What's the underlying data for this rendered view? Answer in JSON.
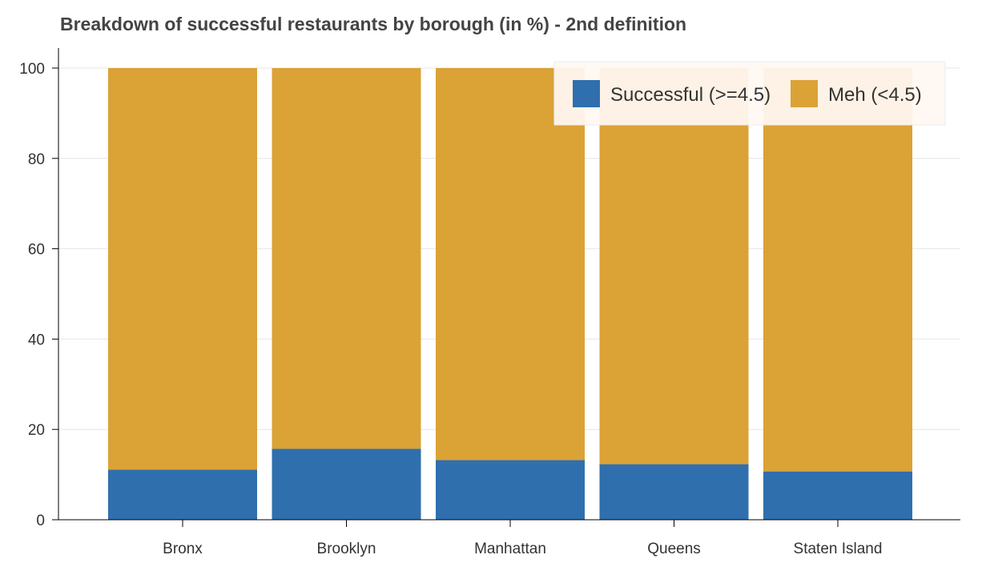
{
  "chart_data": {
    "type": "bar",
    "stacked": true,
    "title": "Breakdown of successful restaurants by borough (in %) - 2nd definition",
    "xlabel": "",
    "ylabel": "",
    "categories": [
      "Bronx",
      "Brooklyn",
      "Manhattan",
      "Queens",
      "Staten Island"
    ],
    "series": [
      {
        "name": "Successful (>=4.5)",
        "color": "#2f6fad",
        "values": [
          11.1,
          15.7,
          13.2,
          12.3,
          10.7
        ]
      },
      {
        "name": "Meh (<4.5)",
        "color": "#dba236",
        "values": [
          88.9,
          84.3,
          86.8,
          87.7,
          89.3
        ]
      }
    ],
    "ylim": [
      0,
      100
    ],
    "yticks": [
      0,
      20,
      40,
      60,
      80,
      100
    ],
    "grid": true,
    "legend_position": "top-right"
  }
}
